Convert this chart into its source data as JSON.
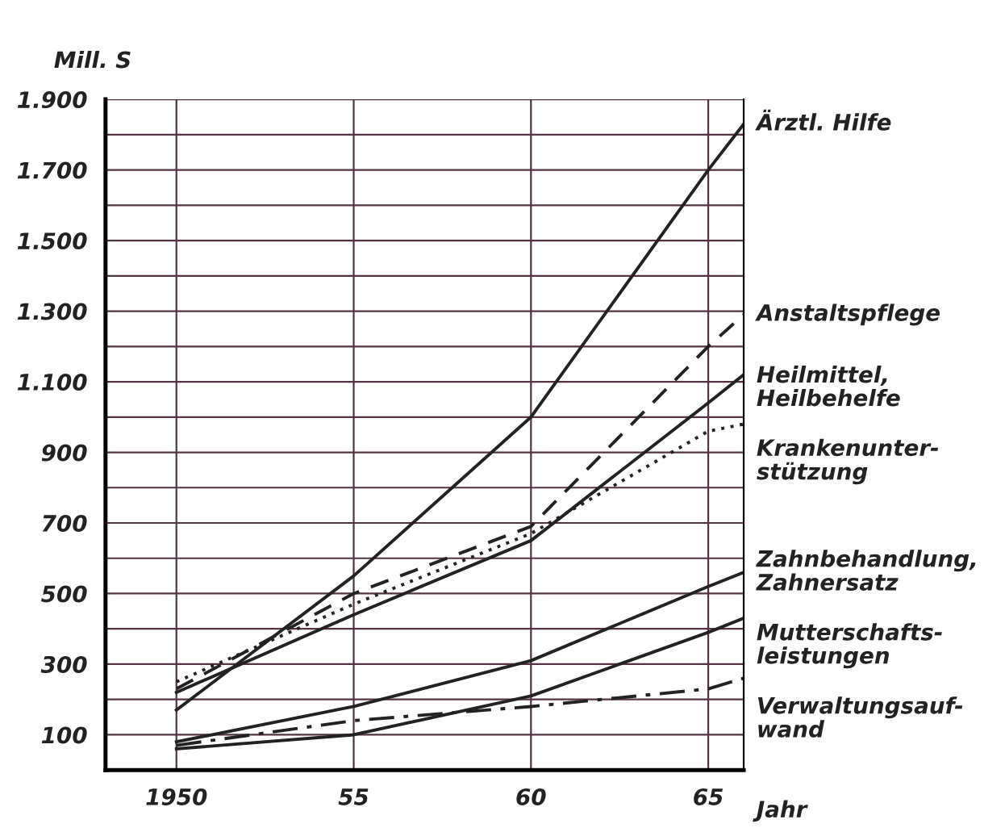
{
  "chart_data": {
    "type": "line",
    "ylabel": "Mill. S",
    "xlabel": "Jahr",
    "x": [
      1950,
      1955,
      1960,
      1965,
      1966
    ],
    "series": [
      {
        "name": "Ärztl. Hilfe",
        "color": "#222222",
        "line_style": "solid",
        "values": [
          170,
          550,
          1000,
          1700,
          1830
        ]
      },
      {
        "name": "Anstaltspflege",
        "color": "#222222",
        "line_style": "dashed",
        "values": [
          230,
          500,
          690,
          1200,
          1290
        ]
      },
      {
        "name": "Heilmittel, Heilbehelfe",
        "color": "#222222",
        "line_style": "solid",
        "values": [
          220,
          440,
          650,
          1040,
          1120
        ]
      },
      {
        "name": "Krankenunter-stützung",
        "color": "#222222",
        "line_style": "dotted",
        "values": [
          250,
          470,
          670,
          960,
          980
        ]
      },
      {
        "name": "Zahnbehandlung, Zahnersatz",
        "color": "#222222",
        "line_style": "solid",
        "values": [
          80,
          180,
          310,
          520,
          560
        ]
      },
      {
        "name": "Mutterschafts-leistungen",
        "color": "#222222",
        "line_style": "solid",
        "values": [
          60,
          100,
          210,
          390,
          430
        ]
      },
      {
        "name": "Verwaltungsauf-wand",
        "color": "#222222",
        "line_style": "dashdot",
        "values": [
          70,
          140,
          180,
          230,
          260
        ]
      }
    ],
    "xlim": [
      1948,
      1966
    ],
    "ylim": [
      0,
      1900
    ],
    "xticks": [
      {
        "value": 1950,
        "label": "1950"
      },
      {
        "value": 1955,
        "label": "55"
      },
      {
        "value": 1960,
        "label": "60"
      },
      {
        "value": 1965,
        "label": "65"
      }
    ],
    "yticks": [
      {
        "value": 100,
        "label": "100"
      },
      {
        "value": 200,
        "label": null
      },
      {
        "value": 300,
        "label": "300"
      },
      {
        "value": 400,
        "label": null
      },
      {
        "value": 500,
        "label": "500"
      },
      {
        "value": 600,
        "label": null
      },
      {
        "value": 700,
        "label": "700"
      },
      {
        "value": 800,
        "label": null
      },
      {
        "value": 900,
        "label": "900"
      },
      {
        "value": 1000,
        "label": null
      },
      {
        "value": 1100,
        "label": "1.100"
      },
      {
        "value": 1200,
        "label": null
      },
      {
        "value": 1300,
        "label": "1.300"
      },
      {
        "value": 1400,
        "label": null
      },
      {
        "value": 1500,
        "label": "1.500"
      },
      {
        "value": 1600,
        "label": null
      },
      {
        "value": 1700,
        "label": "1.700"
      },
      {
        "value": 1800,
        "label": null
      },
      {
        "value": 1900,
        "label": "1.900"
      }
    ],
    "grid": true,
    "marker": "none"
  }
}
